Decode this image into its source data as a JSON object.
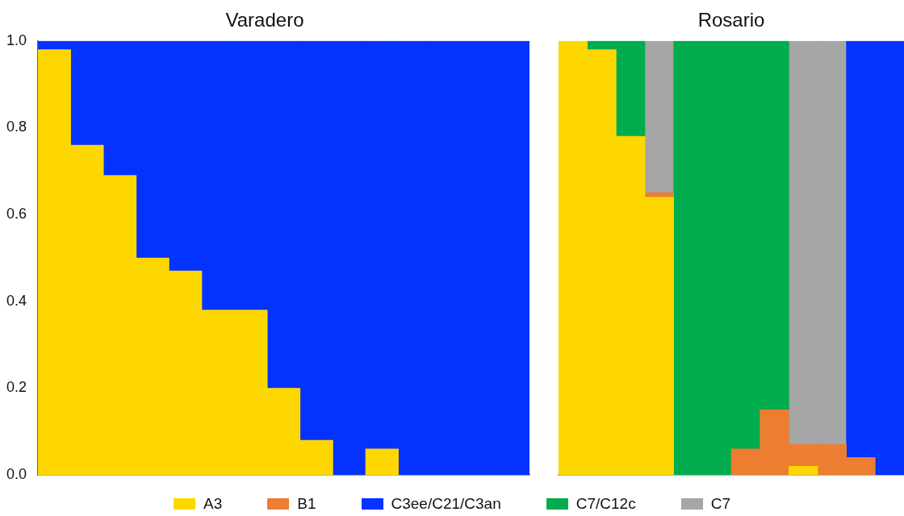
{
  "chart_data": [
    {
      "type": "bar",
      "title": "Varadero",
      "stacked": true,
      "categories": [
        null,
        null,
        null,
        null,
        null,
        null,
        null,
        null,
        null,
        null,
        null,
        null,
        null,
        null,
        null
      ],
      "ylim": [
        0,
        1
      ],
      "yticks": [
        {
          "value": 0,
          "label": "0.0"
        },
        {
          "value": 0.2,
          "label": "0.2"
        },
        {
          "value": 0.4,
          "label": "0.4"
        },
        {
          "value": 0.6,
          "label": "0.6"
        },
        {
          "value": 0.8,
          "label": "0.8"
        },
        {
          "value": 1,
          "label": "1.0"
        }
      ],
      "tick_labels": "y",
      "grid": false,
      "series": [
        {
          "color": "#fed700",
          "values": [
            0.98,
            0.76,
            0.69,
            0.5,
            0.47,
            0.38,
            0.38,
            0.2,
            0.08,
            null,
            0.06,
            null,
            null,
            null,
            null
          ]
        },
        {
          "color": "#0432ff",
          "values": [
            0.02,
            0.24,
            0.31,
            0.5,
            0.53,
            0.62,
            0.62,
            0.8,
            0.92,
            1,
            0.94,
            1,
            1,
            1,
            1
          ]
        }
      ]
    },
    {
      "type": "bar",
      "title": "Rosario",
      "stacked": true,
      "categories": [
        null,
        null,
        null,
        null,
        null,
        null,
        null,
        null,
        null,
        null,
        null,
        null
      ],
      "ylim": [
        0,
        1
      ],
      "tick_labels": false,
      "grid": false,
      "legend": "bottom",
      "series": [
        {
          "name": "A3",
          "color": "#fed700",
          "values": [
            1,
            0.98,
            0.78,
            0.64,
            null,
            null,
            null,
            null,
            0.02,
            null,
            null,
            null
          ]
        },
        {
          "name": "B1",
          "color": "#ed7d31",
          "values": [
            null,
            null,
            null,
            0.01,
            null,
            null,
            0.06,
            0.15,
            0.05,
            0.07,
            0.04,
            null
          ]
        },
        {
          "name": "C3ee/C21/C3an",
          "color": "#0432ff",
          "values": [
            null,
            null,
            null,
            null,
            null,
            null,
            null,
            null,
            null,
            null,
            0.96,
            1
          ]
        },
        {
          "name": "C7/C12c",
          "color": "#00ac4d",
          "values": [
            null,
            0.02,
            0.22,
            null,
            1,
            1,
            0.94,
            0.85,
            null,
            null,
            null,
            null
          ]
        },
        {
          "name": "C7",
          "color": "#a6a6a6",
          "values": [
            null,
            null,
            null,
            0.35,
            null,
            null,
            null,
            null,
            0.93,
            0.93,
            null,
            null
          ]
        }
      ]
    }
  ]
}
